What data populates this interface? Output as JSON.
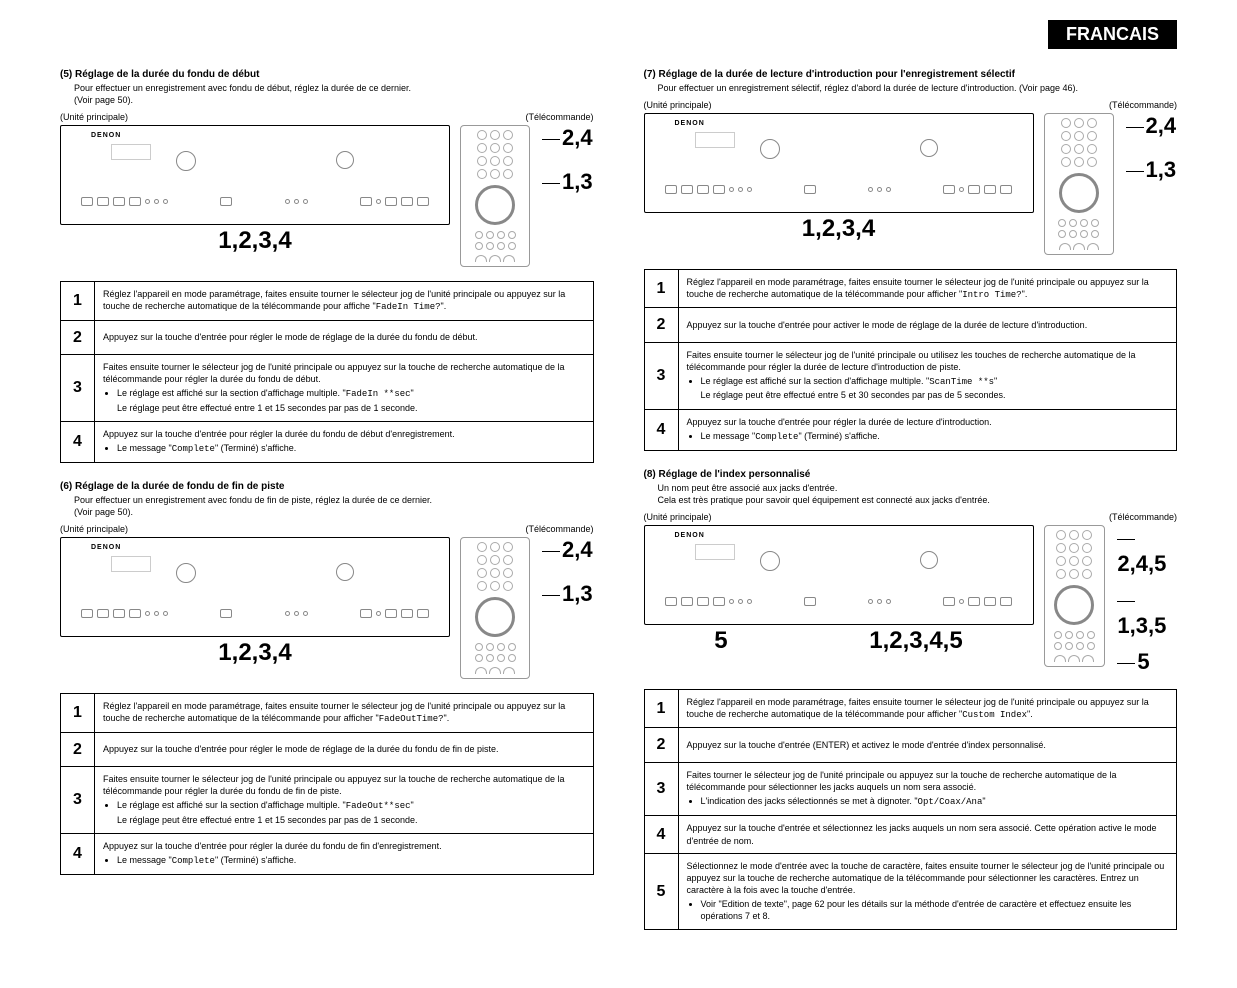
{
  "header": {
    "language": "FRANCAIS"
  },
  "labels": {
    "main_unit": "(Unité principale)",
    "remote": "(Télécommande)"
  },
  "device": {
    "brand": "DENON"
  },
  "left": {
    "s5": {
      "title": "(5) Réglage de la durée du fondu de début",
      "intro": "Pour effectuer un enregistrement avec fondu de début, réglez la durée de ce dernier.\n(Voir page 50).",
      "callouts": {
        "main": "1,2,3,4",
        "side_top": "2,4",
        "side_bottom": "1,3"
      },
      "steps": [
        {
          "n": "1",
          "text": "Réglez l'appareil en mode paramétrage, faites ensuite tourner le sélecteur jog de l'unité principale ou appuyez sur la touche de recherche automatique de la télécommande pour affiche \"",
          "mono": "FadeIn Time?",
          "after": "\"."
        },
        {
          "n": "2",
          "text": "Appuyez sur la touche d'entrée pour régler le mode de réglage de la durée du fondu de début."
        },
        {
          "n": "3",
          "text": "Faites ensuite tourner le sélecteur jog de l'unité principale ou appuyez sur la touche de recherche automatique de la télécommande pour régler la durée du fondu de début.",
          "bullets": [
            {
              "pre": "Le réglage est affiché sur la section d'affichage multiple. \"",
              "mono": "FadeIn **sec",
              "post": "\""
            },
            {
              "pre": "Le réglage peut être effectué entre 1 et 15 secondes par pas de 1 seconde."
            }
          ]
        },
        {
          "n": "4",
          "text": "Appuyez sur la touche d'entrée pour régler la durée du fondu de début d'enregistrement.",
          "bullets": [
            {
              "pre": "Le message \"",
              "mono": "Complete",
              "post": "\" (Terminé) s'affiche."
            }
          ]
        }
      ]
    },
    "s6": {
      "title": "(6) Réglage de la durée de fondu de fin de piste",
      "intro": "Pour effectuer un enregistrement avec fondu de fin de piste, réglez la durée de ce dernier.\n(Voir page 50).",
      "callouts": {
        "main": "1,2,3,4",
        "side_top": "2,4",
        "side_bottom": "1,3"
      },
      "steps": [
        {
          "n": "1",
          "text": "Réglez l'appareil en mode paramétrage, faites ensuite tourner le sélecteur jog de l'unité principale ou appuyez sur la touche de recherche automatique de la télécommande pour afficher \"",
          "mono": "FadeOutTime?",
          "after": "\"."
        },
        {
          "n": "2",
          "text": "Appuyez sur la touche d'entrée pour régler le mode de réglage de la durée du fondu de fin de piste."
        },
        {
          "n": "3",
          "text": "Faites ensuite tourner le sélecteur jog de l'unité principale ou appuyez sur la touche de recherche automatique de la télécommande pour régler la durée du fondu de fin de piste.",
          "bullets": [
            {
              "pre": "Le réglage est affiché sur la section d'affichage multiple. \"",
              "mono": "FadeOut**sec",
              "post": "\""
            },
            {
              "pre": "Le réglage peut être effectué entre 1 et 15 secondes par pas de 1 seconde."
            }
          ]
        },
        {
          "n": "4",
          "text": "Appuyez sur la touche d'entrée pour régler la durée du fondu de fin d'enregistrement.",
          "bullets": [
            {
              "pre": "Le message \"",
              "mono": "Complete",
              "post": "\" (Terminé) s'affiche."
            }
          ]
        }
      ]
    }
  },
  "right": {
    "s7": {
      "title": "(7) Réglage de la durée de lecture d'introduction pour l'enregistrement sélectif",
      "intro": "Pour effectuer un enregistrement sélectif, réglez d'abord la durée de lecture d'introduction.  (Voir page 46).",
      "callouts": {
        "main": "1,2,3,4",
        "side_top": "2,4",
        "side_bottom": "1,3"
      },
      "steps": [
        {
          "n": "1",
          "text": "Réglez l'appareil en mode paramétrage, faites ensuite tourner le sélecteur jog de l'unité principale ou appuyez sur la touche de recherche automatique de la télécommande pour afficher \"",
          "mono": "Intro Time?",
          "after": "\"."
        },
        {
          "n": "2",
          "text": "Appuyez sur la touche d'entrée pour activer le mode de réglage de la durée de lecture d'introduction."
        },
        {
          "n": "3",
          "text": "Faites ensuite tourner le sélecteur jog de l'unité principale ou utilisez les touches de recherche automatique de la télécommande pour régler la durée de lecture d'introduction de piste.",
          "bullets": [
            {
              "pre": "Le réglage est affiché sur la section d'affichage multiple. \"",
              "mono": "ScanTime **s",
              "post": "\""
            },
            {
              "pre": "Le réglage peut être effectué entre 5 et 30 secondes par pas de 5 secondes."
            }
          ]
        },
        {
          "n": "4",
          "text": "Appuyez sur la touche d'entrée pour régler la durée de lecture d'introduction.",
          "bullets": [
            {
              "pre": "Le message \"",
              "mono": "Complete",
              "post": "\" (Terminé) s'affiche."
            }
          ]
        }
      ]
    },
    "s8": {
      "title": "(8) Réglage de l'index personnalisé",
      "intro": "Un nom peut être associé aux jacks d'entrée.\nCela est très pratique pour savoir quel équipement est connecté aux jacks d'entrée.",
      "callouts": {
        "main_left": "5",
        "main_right": "1,2,3,4,5",
        "side_a": "2,4,5",
        "side_b": "1,3,5",
        "side_c": "5"
      },
      "steps": [
        {
          "n": "1",
          "text": "Réglez l'appareil en mode paramétrage, faites ensuite tourner le sélecteur jog de l'unité principale ou appuyez sur la touche de recherche automatique de la télécommande pour afficher \"",
          "mono": "Custom Index",
          "after": "\"."
        },
        {
          "n": "2",
          "text": "Appuyez sur la touche d'entrée (ENTER) et activez le mode d'entrée d'index personnalisé."
        },
        {
          "n": "3",
          "text": "Faites tourner le sélecteur jog de l'unité principale ou appuyez sur la touche de recherche automatique de la télécommande pour sélectionner les jacks auquels un nom sera associé.",
          "bullets": [
            {
              "pre": "L'indication des jacks sélectionnés se met à dignoter. \"",
              "mono": "Opt/Coax/Ana",
              "post": "\""
            }
          ]
        },
        {
          "n": "4",
          "text": "Appuyez sur la touche d'entrée et sélectionnez les jacks auquels un nom sera associé. Cette opération active le mode d'entrée de nom."
        },
        {
          "n": "5",
          "text": "Sélectionnez le mode d'entrée avec la touche de caractère, faites ensuite tourner le sélecteur jog de l'unité principale ou appuyez sur la touche de recherche automatique de la télécommande pour sélectionner les caractères.  Entrez un caractère à la fois avec la touche d'entrée.",
          "bullets": [
            {
              "pre": "Voir \"Edition de texte\", page 62 pour les détails sur la méthode d'entrée de caractère et effectuez ensuite les opérations 7 et 8."
            }
          ]
        }
      ]
    }
  }
}
